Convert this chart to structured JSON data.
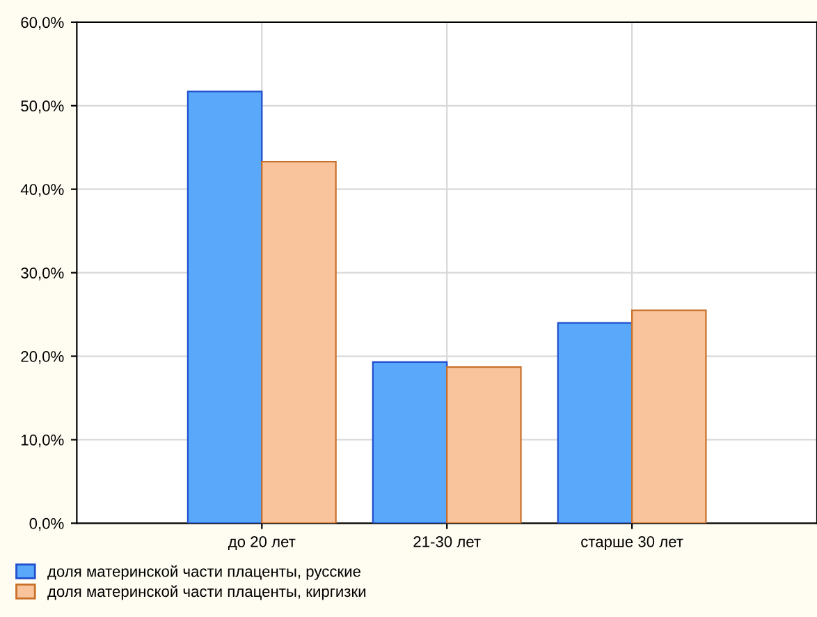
{
  "chart_data": {
    "type": "bar",
    "categories": [
      "до 20 лет",
      "21-30 лет",
      "старше 30 лет"
    ],
    "series": [
      {
        "name": "доля материнской части плаценты, русские",
        "color": "#5aa8fa",
        "values": [
          51.7,
          19.3,
          24.0
        ]
      },
      {
        "name": "доля материнской части плаценты, киргизки",
        "color": "#f9c49c",
        "values": [
          43.3,
          18.7,
          25.5
        ]
      }
    ],
    "ylim": [
      0,
      60
    ],
    "yticks": [
      {
        "value": 0,
        "label": "0,0%"
      },
      {
        "value": 10,
        "label": "10,0%"
      },
      {
        "value": 20,
        "label": "20,0%"
      },
      {
        "value": 30,
        "label": "30,0%"
      },
      {
        "value": 40,
        "label": "40,0%"
      },
      {
        "value": 50,
        "label": "50,0%"
      },
      {
        "value": 60,
        "label": "60,0%"
      }
    ],
    "grid": true,
    "legend": "bottom"
  }
}
